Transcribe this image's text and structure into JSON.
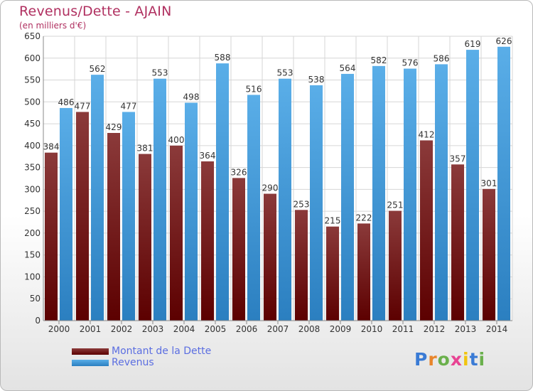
{
  "header": {
    "title": "Revenus/Dette - AJAIN",
    "subtitle": "(en milliers d'€)"
  },
  "legend": {
    "debt_label": "Montant de la Dette",
    "revenue_label": "Revenus"
  },
  "logo": {
    "text": "Proxiti"
  },
  "colors": {
    "debt_top": "#8b3a3a",
    "debt_bottom": "#5c0000",
    "revenue_top": "#5aaee8",
    "revenue_bottom": "#2b7fc0",
    "title": "#b03060",
    "legend_text": "#5b6ee1"
  },
  "chart_data": {
    "type": "bar",
    "categories": [
      "2000",
      "2001",
      "2002",
      "2003",
      "2004",
      "2005",
      "2006",
      "2007",
      "2008",
      "2009",
      "2010",
      "2011",
      "2012",
      "2013",
      "2014"
    ],
    "series": [
      {
        "name": "Montant de la Dette",
        "values": [
          384,
          477,
          429,
          381,
          400,
          364,
          326,
          290,
          253,
          215,
          222,
          251,
          412,
          357,
          301
        ]
      },
      {
        "name": "Revenus",
        "values": [
          486,
          562,
          477,
          553,
          498,
          588,
          516,
          553,
          538,
          564,
          582,
          576,
          586,
          619,
          626
        ]
      }
    ],
    "ylim": [
      0,
      650
    ],
    "yticks": [
      0,
      50,
      100,
      150,
      200,
      250,
      300,
      350,
      400,
      450,
      500,
      550,
      600,
      650
    ],
    "grid": true,
    "legend_position": "bottom-left"
  }
}
